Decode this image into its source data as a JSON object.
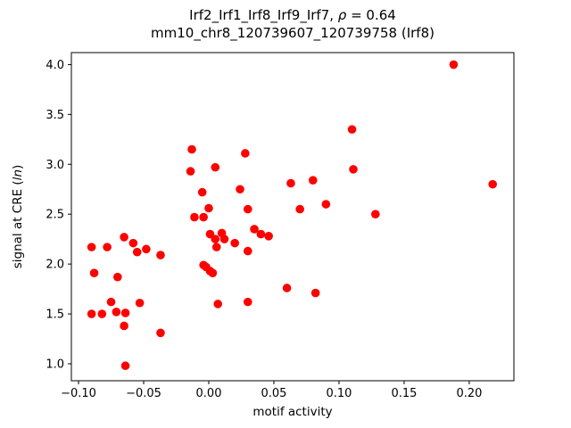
{
  "chart": {
    "title_prefix": "Irf2_Irf1_Irf8_Irf9_Irf7, ",
    "title_rho": "ρ",
    "title_suffix": " = 0.64",
    "subtitle": "mm10_chr8_120739607_120739758 (Irf8)",
    "xlabel": "motif activity",
    "ylabel_prefix": "signal at CRE (",
    "ylabel_italic": "ln",
    "ylabel_suffix": ")"
  },
  "chart_data": {
    "type": "scatter",
    "title": "Irf2_Irf1_Irf8_Irf9_Irf7, ρ = 0.64",
    "subtitle": "mm10_chr8_120739607_120739758 (Irf8)",
    "xlabel": "motif activity",
    "ylabel": "signal at CRE (ln)",
    "marker_color": "#ff0000",
    "axis_color": "#000000",
    "xlim": [
      -0.1055,
      0.2343
    ],
    "ylim": [
      0.83,
      4.12
    ],
    "xticks": [
      -0.1,
      -0.05,
      0.0,
      0.05,
      0.1,
      0.15,
      0.2
    ],
    "yticks": [
      1.0,
      1.5,
      2.0,
      2.5,
      3.0,
      3.5,
      4.0
    ],
    "grid": false,
    "legend": "none",
    "points": [
      [
        -0.09,
        2.17
      ],
      [
        -0.088,
        1.91
      ],
      [
        -0.09,
        1.5
      ],
      [
        -0.082,
        1.5
      ],
      [
        -0.078,
        2.17
      ],
      [
        -0.075,
        1.62
      ],
      [
        -0.071,
        1.52
      ],
      [
        -0.07,
        1.87
      ],
      [
        -0.065,
        2.27
      ],
      [
        -0.064,
        1.51
      ],
      [
        -0.065,
        1.38
      ],
      [
        -0.064,
        0.98
      ],
      [
        -0.058,
        2.21
      ],
      [
        -0.055,
        2.12
      ],
      [
        -0.053,
        1.61
      ],
      [
        -0.048,
        2.15
      ],
      [
        -0.037,
        2.09
      ],
      [
        -0.037,
        1.31
      ],
      [
        -0.013,
        3.15
      ],
      [
        -0.014,
        2.93
      ],
      [
        -0.011,
        2.47
      ],
      [
        -0.005,
        2.72
      ],
      [
        -0.004,
        2.47
      ],
      [
        -0.004,
        1.99
      ],
      [
        -0.002,
        1.97
      ],
      [
        0.0,
        2.56
      ],
      [
        0.001,
        2.3
      ],
      [
        0.001,
        1.93
      ],
      [
        0.003,
        1.91
      ],
      [
        0.005,
        2.97
      ],
      [
        0.005,
        2.25
      ],
      [
        0.006,
        2.17
      ],
      [
        0.007,
        1.6
      ],
      [
        0.01,
        2.31
      ],
      [
        0.012,
        2.25
      ],
      [
        0.02,
        2.21
      ],
      [
        0.024,
        2.75
      ],
      [
        0.028,
        3.11
      ],
      [
        0.03,
        2.55
      ],
      [
        0.03,
        2.13
      ],
      [
        0.03,
        1.62
      ],
      [
        0.035,
        2.35
      ],
      [
        0.04,
        2.3
      ],
      [
        0.046,
        2.28
      ],
      [
        0.06,
        1.76
      ],
      [
        0.063,
        2.81
      ],
      [
        0.07,
        2.55
      ],
      [
        0.08,
        2.84
      ],
      [
        0.082,
        1.71
      ],
      [
        0.09,
        2.6
      ],
      [
        0.11,
        3.35
      ],
      [
        0.111,
        2.95
      ],
      [
        0.128,
        2.5
      ],
      [
        0.188,
        4.0
      ],
      [
        0.218,
        2.8
      ]
    ]
  }
}
